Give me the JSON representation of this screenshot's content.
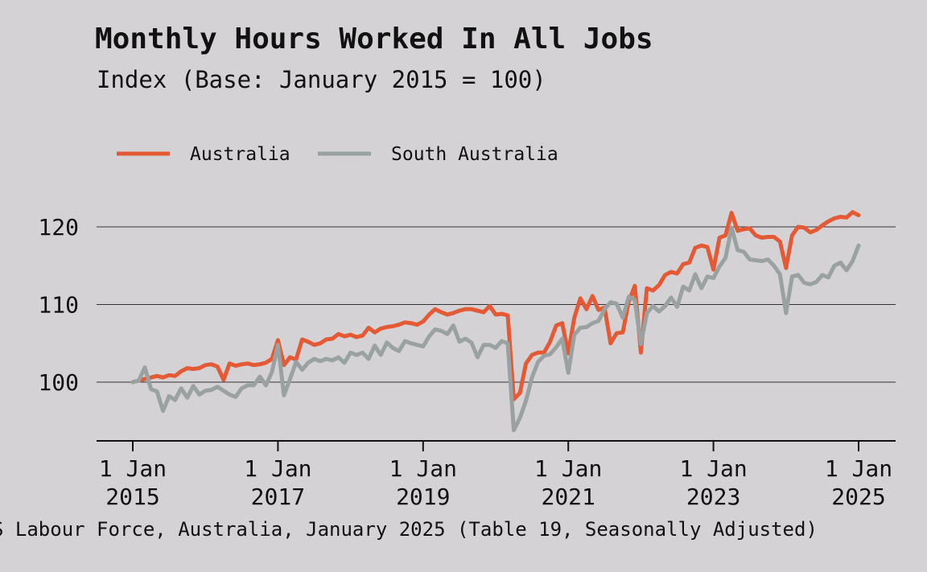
{
  "chart_data": {
    "type": "line",
    "title": "Monthly Hours Worked In All Jobs",
    "subtitle": "Index (Base: January 2015 = 100)",
    "source": "S Labour Force, Australia, January 2025 (Table 19, Seasonally Adjusted)",
    "x_start": "2015-01",
    "x_ticks": [
      {
        "line1": "1 Jan",
        "line2": "2015",
        "value": "2015-01"
      },
      {
        "line1": "1 Jan",
        "line2": "2017",
        "value": "2017-01"
      },
      {
        "line1": "1 Jan",
        "line2": "2019",
        "value": "2019-01"
      },
      {
        "line1": "1 Jan",
        "line2": "2021",
        "value": "2021-01"
      },
      {
        "line1": "1 Jan",
        "line2": "2023",
        "value": "2023-01"
      },
      {
        "line1": "1 Jan",
        "line2": "2025",
        "value": "2025-01"
      }
    ],
    "y_ticks": [
      100,
      110,
      120
    ],
    "ylim": [
      92.5,
      126
    ],
    "grid": true,
    "legend_position": "top-left",
    "series": [
      {
        "name": "Australia",
        "color": "#e35a34",
        "values": [
          100,
          100.2,
          100.4,
          100.6,
          100.8,
          100.6,
          100.9,
          100.8,
          101.4,
          101.8,
          101.7,
          101.8,
          102.2,
          102.3,
          102,
          100.3,
          102.4,
          102.1,
          102.3,
          102.4,
          102.2,
          102.3,
          102.5,
          103,
          105.4,
          102.2,
          103.2,
          102.9,
          105.5,
          105.2,
          104.8,
          105,
          105.5,
          105.6,
          106.2,
          105.9,
          106.1,
          105.8,
          106,
          107,
          106.4,
          106.9,
          107.1,
          107.2,
          107.4,
          107.7,
          107.6,
          107.4,
          107.8,
          108.7,
          109.4,
          109,
          108.7,
          108.9,
          109.2,
          109.4,
          109.4,
          109.2,
          109,
          109.8,
          108.7,
          108.8,
          108.6,
          97.8,
          98.6,
          102.4,
          103.5,
          103.8,
          103.8,
          105.2,
          107.3,
          107.6,
          103.7,
          108.3,
          110.8,
          109.4,
          111.1,
          109.3,
          109.6,
          105,
          106.3,
          106.4,
          110.4,
          112.4,
          103.8,
          112.1,
          111.8,
          112.5,
          113.8,
          114.2,
          114,
          115.2,
          115.4,
          117.3,
          117.6,
          117.4,
          114.5,
          118.6,
          118.9,
          121.8,
          119.5,
          119.7,
          119.8,
          118.9,
          118.6,
          118.7,
          118.7,
          118.1,
          114.7,
          118.9,
          120,
          119.9,
          119.3,
          119.6,
          120.2,
          120.7,
          121.1,
          121.3,
          121.2,
          121.9,
          121.5
        ]
      },
      {
        "name": "South Australia",
        "color": "#99a1a1",
        "values": [
          100,
          100.2,
          101.9,
          99.1,
          98.8,
          96.3,
          98.2,
          97.7,
          99.2,
          98,
          99.5,
          98.4,
          98.9,
          99,
          99.4,
          98.9,
          98.4,
          98.1,
          99.2,
          99.6,
          99.6,
          100.7,
          99.6,
          101.3,
          104.8,
          98.3,
          100.4,
          102.6,
          101.6,
          102.5,
          103,
          102.7,
          103,
          102.8,
          103.2,
          102.5,
          103.8,
          103.5,
          103.8,
          103,
          104.7,
          103.5,
          105.1,
          104.4,
          104,
          105.3,
          105,
          104.8,
          104.6,
          105.9,
          106.8,
          106.6,
          106.2,
          107.3,
          105.2,
          105.6,
          105.1,
          103.2,
          104.8,
          104.8,
          104.4,
          105.3,
          105,
          93.8,
          95.4,
          97.6,
          100.6,
          102.6,
          103.4,
          103.6,
          104.5,
          105.6,
          101.2,
          106.1,
          107,
          107.1,
          107.6,
          107.9,
          109.4,
          110.3,
          110.1,
          108.3,
          111,
          110.6,
          104.9,
          108.9,
          109.8,
          109.1,
          109.8,
          110.9,
          109.7,
          112.3,
          111.8,
          113.9,
          112.1,
          113.6,
          113.4,
          114.9,
          116,
          119.9,
          117,
          116.8,
          115.8,
          115.7,
          115.6,
          115.8,
          115,
          113.9,
          108.9,
          113.6,
          113.8,
          112.8,
          112.6,
          112.9,
          113.8,
          113.5,
          115,
          115.4,
          114.4,
          115.6,
          117.6
        ]
      }
    ]
  }
}
